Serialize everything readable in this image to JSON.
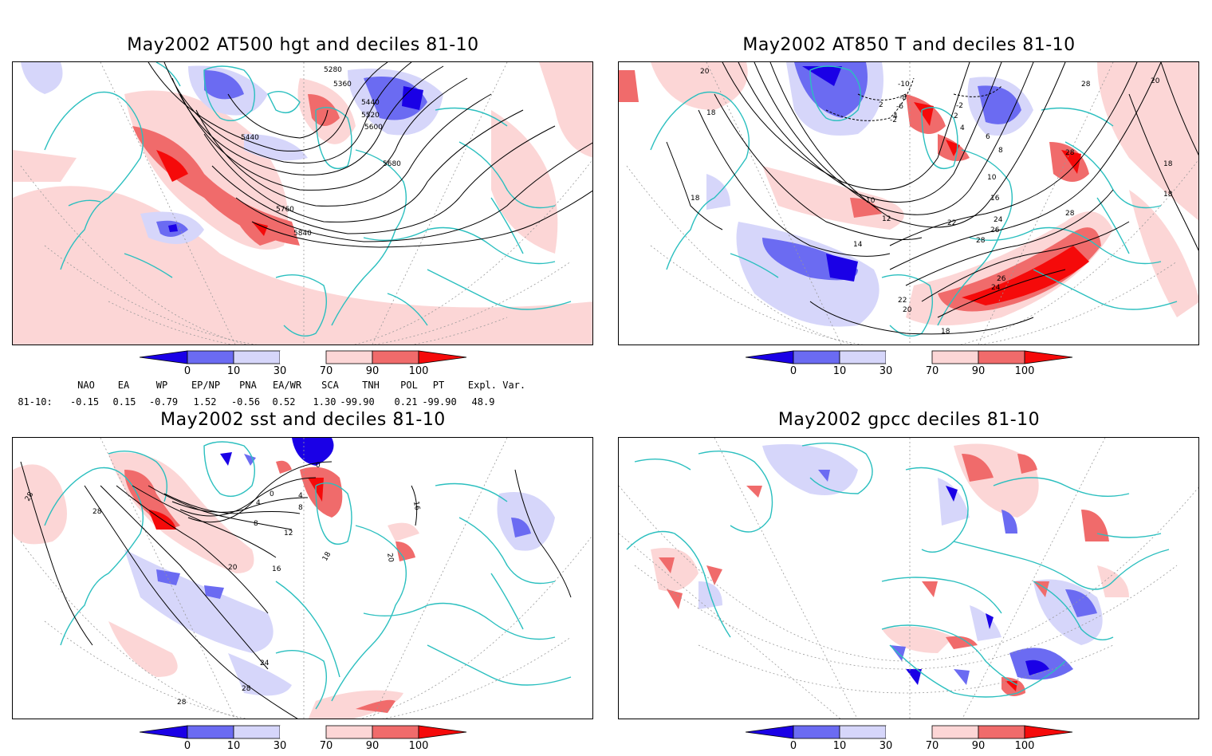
{
  "panels": {
    "p1": {
      "title": "May2002 AT500 hgt and deciles 81-10",
      "contour_labels": [
        "5280",
        "5360",
        "5440",
        "5520",
        "5600",
        "5440",
        "5680",
        "5760",
        "5840"
      ]
    },
    "p2": {
      "title": "May2002 AT850 T and deciles 81-10",
      "contour_labels": [
        "20",
        "18",
        "18",
        "10",
        "12",
        "14",
        "-10",
        "-8",
        "-6",
        "-2",
        "2",
        "4",
        "-2",
        "2",
        "4",
        "6",
        "8",
        "10",
        "16",
        "22",
        "24",
        "26",
        "28",
        "28",
        "26",
        "24",
        "22",
        "20",
        "18",
        "28",
        "28",
        "20",
        "18",
        "18"
      ]
    },
    "p3": {
      "title": "May2002 sst and deciles 81-10",
      "contour_labels": [
        "28",
        "28",
        "20",
        "0",
        "4",
        "0",
        "4",
        "8",
        "8",
        "12",
        "16",
        "18",
        "16",
        "20",
        "24",
        "28",
        "28"
      ]
    },
    "p4": {
      "title": "May2002 gpcc deciles 81-10"
    }
  },
  "colorbar": {
    "labels": [
      "0",
      "10",
      "30",
      "70",
      "90",
      "100"
    ],
    "colors": [
      "#1a00e6",
      "#6b6bf2",
      "#d6d6fa",
      "#ffffff",
      "#fcd6d6",
      "#f06b6b",
      "#f50a0a"
    ]
  },
  "indices": {
    "headers": [
      "NAO",
      "EA",
      "WP",
      "EP/NP",
      "PNA",
      "EA/WR",
      "SCA",
      "TNH",
      "POL",
      "PT",
      "Expl. Var."
    ],
    "row_label": "81-10:",
    "values": [
      "-0.15",
      "0.15",
      "-0.79",
      "1.52",
      "-0.56",
      "0.52",
      "1.30",
      "-99.90",
      "0.21",
      "-99.90",
      "48.9"
    ]
  },
  "colors": {
    "coastline": "#2bbfbf",
    "contour": "#000000"
  }
}
